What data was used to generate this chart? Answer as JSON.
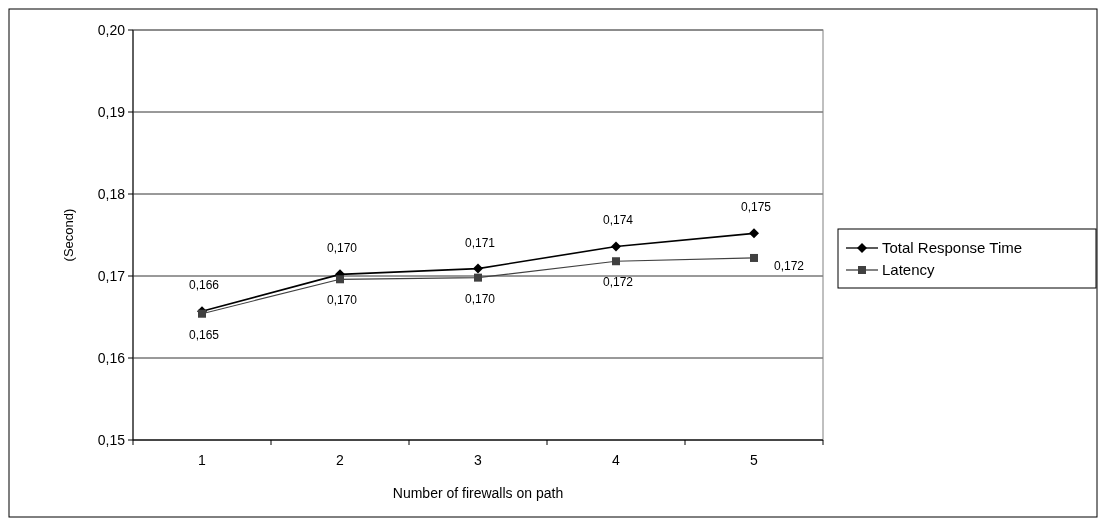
{
  "chart_data": {
    "type": "line",
    "xlabel": "Number of firewalls on path",
    "ylabel": "(Second)",
    "categories": [
      "1",
      "2",
      "3",
      "4",
      "5"
    ],
    "series": [
      {
        "name": "Total Response Time",
        "color": "#000000",
        "marker": "diamond",
        "values": [
          0.1657,
          0.1702,
          0.1709,
          0.1736,
          0.1752
        ],
        "value_labels": [
          "0,166",
          "0,170",
          "0,171",
          "0,174",
          "0,175"
        ]
      },
      {
        "name": "Latency",
        "color": "#404040",
        "marker": "square",
        "values": [
          0.1654,
          0.1696,
          0.1698,
          0.1718,
          0.1722
        ],
        "value_labels": [
          "0,165",
          "0,170",
          "0,170",
          "0,172",
          "0,172"
        ]
      }
    ],
    "ylim": [
      0.15,
      0.2
    ],
    "yticks": [
      {
        "value": 0.15,
        "label": "0,15"
      },
      {
        "value": 0.16,
        "label": "0,16"
      },
      {
        "value": 0.17,
        "label": "0,17"
      },
      {
        "value": 0.18,
        "label": "0,18"
      },
      {
        "value": 0.19,
        "label": "0,19"
      },
      {
        "value": 0.2,
        "label": "0,20"
      }
    ],
    "grid": "y",
    "legend": "right"
  }
}
